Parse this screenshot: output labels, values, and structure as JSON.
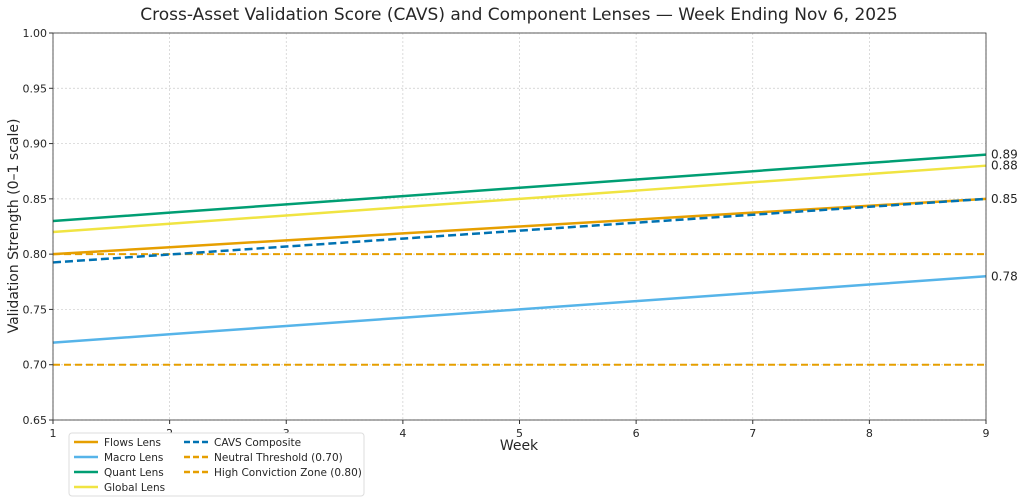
{
  "chart_data": {
    "type": "line",
    "title": "Cross-Asset Validation Score (CAVS) and Component Lenses — Week Ending Nov 6, 2025",
    "xlabel": "Week",
    "ylabel": "Validation Strength (0–1 scale)",
    "x": [
      1,
      2,
      3,
      4,
      5,
      6,
      7,
      8,
      9
    ],
    "xlim": [
      1,
      9
    ],
    "ylim": [
      0.65,
      1.0
    ],
    "xticks": [
      "1",
      "2",
      "3",
      "4",
      "5",
      "6",
      "7",
      "8",
      "9"
    ],
    "yticks": [
      "0.65",
      "0.70",
      "0.75",
      "0.80",
      "0.85",
      "0.90",
      "0.95",
      "1.00"
    ],
    "grid": true,
    "legend_position": "lower-left",
    "series": [
      {
        "name": "Flows Lens",
        "color": "#E69F00",
        "style": "solid",
        "values": [
          0.8,
          0.80625,
          0.8125,
          0.81875,
          0.825,
          0.83125,
          0.8375,
          0.84375,
          0.85
        ],
        "end_label": "0.85"
      },
      {
        "name": "Macro Lens",
        "color": "#56B4E9",
        "style": "solid",
        "values": [
          0.72,
          0.7275,
          0.735,
          0.7425,
          0.75,
          0.7575,
          0.765,
          0.7725,
          0.78
        ],
        "end_label": "0.78"
      },
      {
        "name": "Quant Lens",
        "color": "#009E73",
        "style": "solid",
        "values": [
          0.83,
          0.8375,
          0.845,
          0.8525,
          0.86,
          0.8675,
          0.875,
          0.8825,
          0.89
        ],
        "end_label": "0.89"
      },
      {
        "name": "Global Lens",
        "color": "#F0E442",
        "style": "solid",
        "values": [
          0.82,
          0.8275,
          0.835,
          0.8425,
          0.85,
          0.8575,
          0.865,
          0.8725,
          0.88
        ],
        "end_label": "0.88"
      },
      {
        "name": "CAVS Composite",
        "color": "#0072B2",
        "style": "dashed",
        "values": [
          0.7925,
          0.79969,
          0.80688,
          0.81406,
          0.82125,
          0.82844,
          0.83563,
          0.84281,
          0.85
        ],
        "end_label": "0.85"
      }
    ],
    "reference_lines": [
      {
        "name": "Neutral Threshold (0.70)",
        "value": 0.7,
        "color": "#E69F00"
      },
      {
        "name": "High Conviction Zone (0.80)",
        "value": 0.8,
        "color": "#E69F00"
      }
    ]
  }
}
